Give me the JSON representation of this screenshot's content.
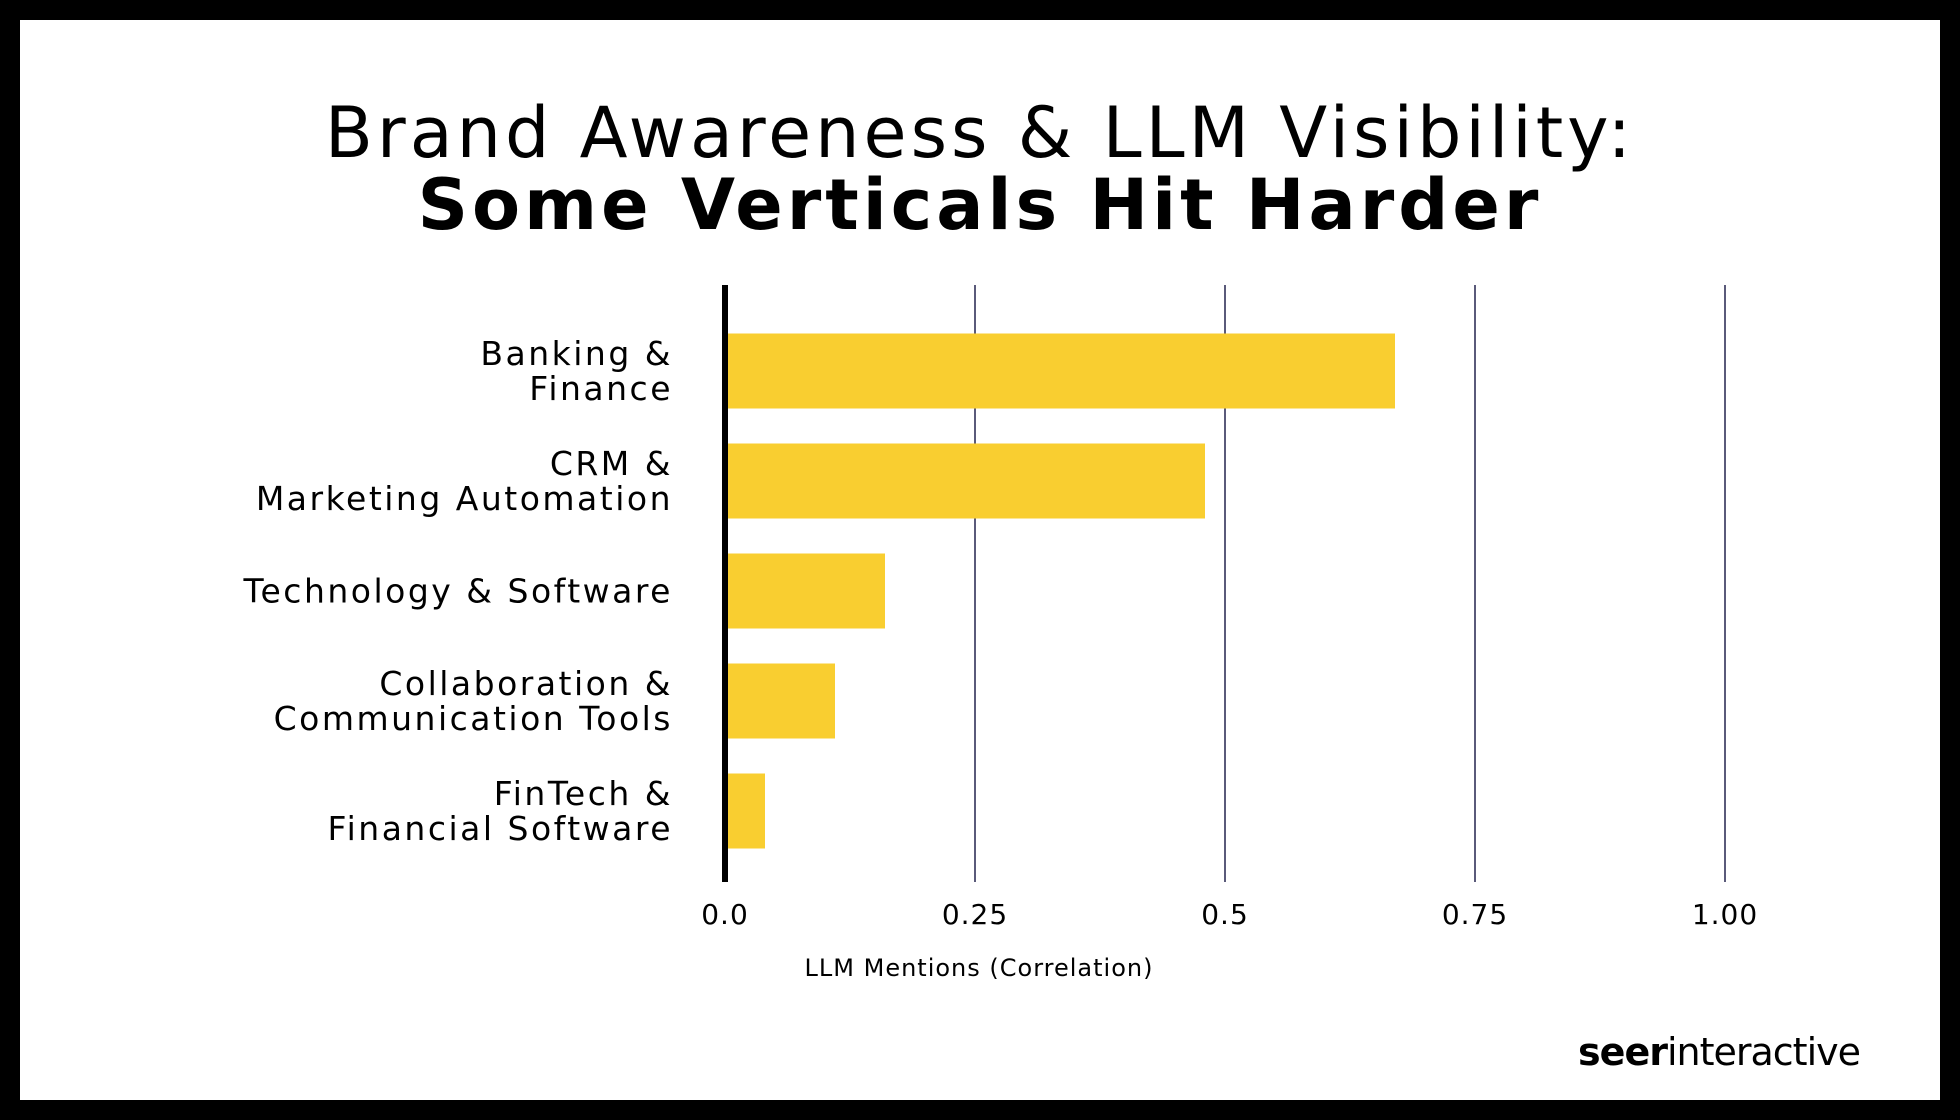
{
  "chart_data": {
    "type": "hbar",
    "title": "Brand Awareness & LLM Visibility:",
    "subtitle": "Some Verticals Hit Harder",
    "categories": [
      "Banking &\nFinance",
      "CRM &\nMarketing Automation",
      "Technology & Software",
      "Collaboration &\nCommunication Tools",
      "FinTech &\nFinancial Software"
    ],
    "values": [
      0.67,
      0.48,
      0.16,
      0.11,
      0.04
    ],
    "color": "#f9ce30",
    "xlim": [
      0,
      1
    ],
    "xticks": [
      {
        "value": 0,
        "label": "0.0"
      },
      0.25,
      0.5,
      0.75,
      {
        "value": 1,
        "label": "1.00"
      }
    ],
    "xlabel": "LLM Mentions (Correlation)",
    "grid": true,
    "grid_color": "#5a5a7a",
    "brand": {
      "bold": "seer",
      "regular": "interactive"
    }
  }
}
